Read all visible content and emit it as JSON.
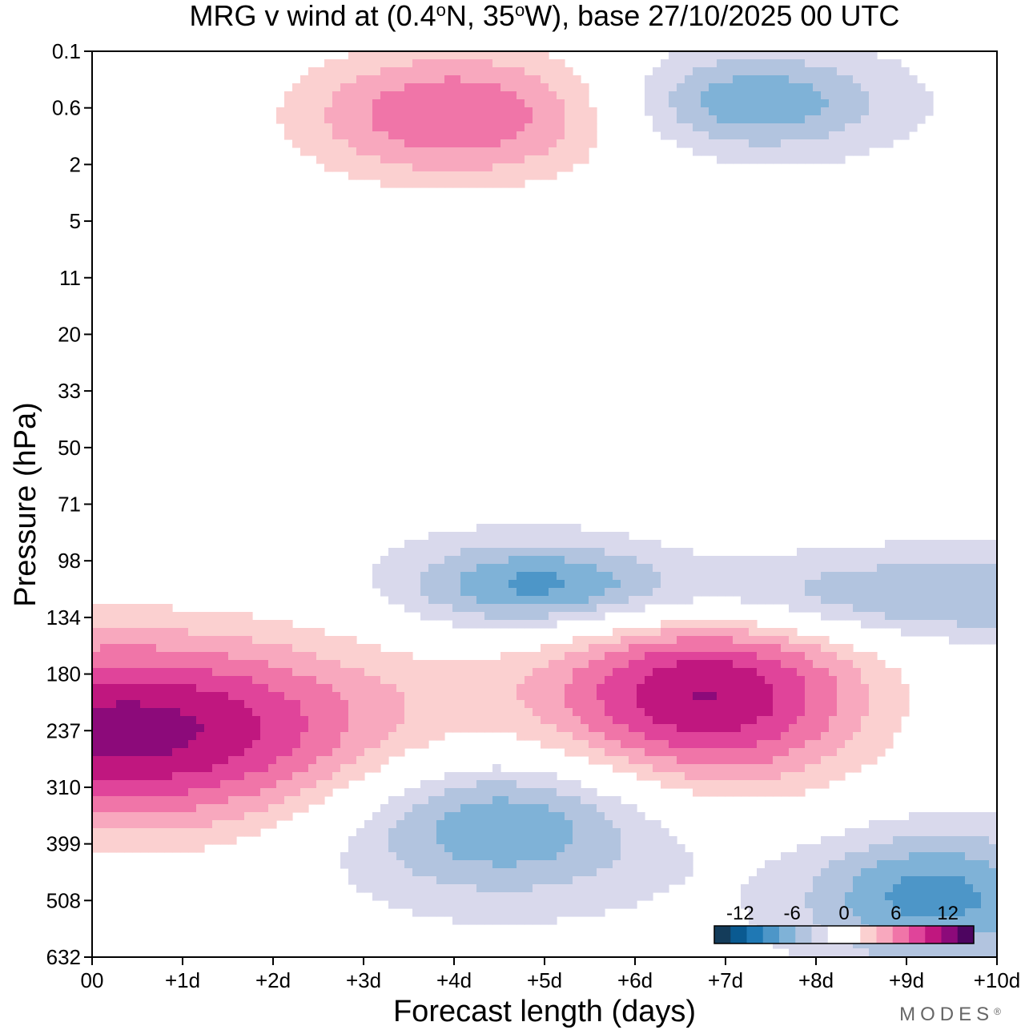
{
  "chart_data": {
    "type": "contour",
    "title_parts": [
      "MRG v wind at (0.4",
      "o",
      "N, 35",
      "o",
      "W),  base 27/10/2025  00 UTC"
    ],
    "xlabel": "Forecast length (days)",
    "ylabel": "Pressure (hPa)",
    "x_ticks": [
      "00",
      "+1d",
      "+2d",
      "+3d",
      "+4d",
      "+5d",
      "+6d",
      "+7d",
      "+8d",
      "+9d",
      "+10d"
    ],
    "x_range_days": [
      0,
      10
    ],
    "y_ticks": [
      "0.1",
      "0.6",
      "2",
      "5",
      "11",
      "20",
      "33",
      "50",
      "71",
      "98",
      "134",
      "180",
      "237",
      "310",
      "399",
      "508",
      "632"
    ],
    "y_scale": "log",
    "y_range_hpa": [
      0.1,
      632
    ],
    "colorbar": {
      "levels": [
        -15,
        -13,
        -11,
        -9,
        -7,
        -5,
        -3,
        -1,
        1,
        3,
        5,
        7,
        9,
        11,
        13,
        15
      ],
      "tick_labels": [
        "-12",
        "-6",
        "0",
        "6",
        "12"
      ],
      "tick_values": [
        -12,
        -6,
        0,
        6,
        12
      ],
      "colors": [
        "#143c5a",
        "#0a5a91",
        "#1f78b4",
        "#4d96c8",
        "#7fb2d7",
        "#b2c4df",
        "#d9d9ec",
        "#ffffff",
        "#ffffff",
        "#fbd0d0",
        "#f8a8be",
        "#f075a8",
        "#e0449a",
        "#c0177f",
        "#8c0a7a",
        "#4d0560"
      ]
    },
    "features": [
      {
        "name": "lower-strat-positive-core",
        "day": 0.4,
        "pressure_hpa": 237,
        "peak_ms": 14
      },
      {
        "name": "mid-positive-core",
        "day": 6.8,
        "pressure_hpa": 200,
        "peak_ms": 13
      },
      {
        "name": "negative-core-a",
        "day": 4.5,
        "pressure_hpa": 360,
        "peak_ms": -8
      },
      {
        "name": "negative-core-b",
        "day": 4.9,
        "pressure_hpa": 112,
        "peak_ms": -7
      },
      {
        "name": "negative-core-c",
        "day": 9.3,
        "pressure_hpa": 500,
        "peak_ms": -8
      },
      {
        "name": "strat-negative-band",
        "day": 8.5,
        "pressure_hpa": 120,
        "peak_ms": -6
      },
      {
        "name": "upper-positive-core",
        "day": 4.0,
        "pressure_hpa": 0.7,
        "peak_ms": 9
      },
      {
        "name": "upper-negative-core",
        "day": 7.3,
        "pressure_hpa": 0.5,
        "peak_ms": -7
      }
    ]
  },
  "logo_text": "MODES",
  "logo_mark": "®"
}
